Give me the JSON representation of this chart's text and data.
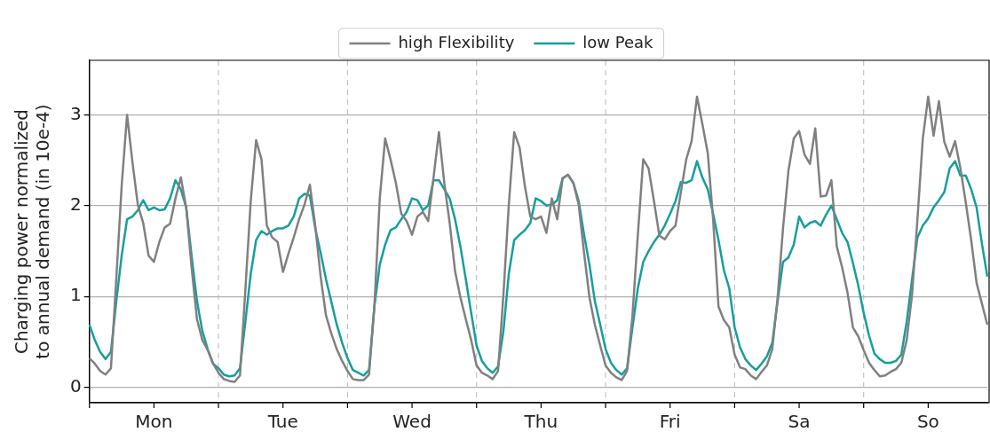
{
  "chart_data": {
    "type": "line",
    "ylabel": "Charging power normalized\nto annual demand (in 10e-4)",
    "categories": [
      null,
      null,
      null,
      null,
      null,
      null,
      null,
      null,
      null,
      null,
      null,
      null,
      "Mon",
      null,
      null,
      null,
      null,
      null,
      null,
      null,
      null,
      null,
      null,
      null,
      null,
      null,
      null,
      null,
      null,
      null,
      null,
      null,
      null,
      null,
      null,
      null,
      "Tue",
      null,
      null,
      null,
      null,
      null,
      null,
      null,
      null,
      null,
      null,
      null,
      null,
      null,
      null,
      null,
      null,
      null,
      null,
      null,
      null,
      null,
      null,
      null,
      "Wed",
      null,
      null,
      null,
      null,
      null,
      null,
      null,
      null,
      null,
      null,
      null,
      null,
      null,
      null,
      null,
      null,
      null,
      null,
      null,
      null,
      null,
      null,
      null,
      "Thu",
      null,
      null,
      null,
      null,
      null,
      null,
      null,
      null,
      null,
      null,
      null,
      null,
      null,
      null,
      null,
      null,
      null,
      null,
      null,
      null,
      null,
      null,
      null,
      "Fri",
      null,
      null,
      null,
      null,
      null,
      null,
      null,
      null,
      null,
      null,
      null,
      null,
      null,
      null,
      null,
      null,
      null,
      null,
      null,
      null,
      null,
      null,
      null,
      "Sa",
      null,
      null,
      null,
      null,
      null,
      null,
      null,
      null,
      null,
      null,
      null,
      null,
      null,
      null,
      null,
      null,
      null,
      null,
      null,
      null,
      null,
      null,
      null,
      "So",
      null,
      null,
      null,
      null,
      null,
      null,
      null,
      null,
      null,
      null,
      null
    ],
    "series": [
      {
        "name": "high Flexibility",
        "color": "#808080",
        "values": [
          0.32,
          0.26,
          0.18,
          0.14,
          0.21,
          1.2,
          2.22,
          3.0,
          2.48,
          2.01,
          1.81,
          1.45,
          1.38,
          1.6,
          1.76,
          1.8,
          2.08,
          2.31,
          1.98,
          1.32,
          0.75,
          0.52,
          0.41,
          0.26,
          0.16,
          0.09,
          0.07,
          0.06,
          0.13,
          1.07,
          2.05,
          2.72,
          2.51,
          1.78,
          1.65,
          1.6,
          1.27,
          1.47,
          1.65,
          1.85,
          2.01,
          2.23,
          1.78,
          1.22,
          0.79,
          0.59,
          0.42,
          0.29,
          0.18,
          0.09,
          0.08,
          0.08,
          0.14,
          0.89,
          2.08,
          2.74,
          2.51,
          2.25,
          1.91,
          1.83,
          1.68,
          1.88,
          1.93,
          1.83,
          2.31,
          2.81,
          2.25,
          1.81,
          1.28,
          0.99,
          0.75,
          0.52,
          0.24,
          0.16,
          0.13,
          0.09,
          0.18,
          1.02,
          2.01,
          2.81,
          2.64,
          2.21,
          1.88,
          1.85,
          1.88,
          1.7,
          2.08,
          1.85,
          2.3,
          2.34,
          2.25,
          2.01,
          1.48,
          0.99,
          0.69,
          0.46,
          0.24,
          0.16,
          0.11,
          0.08,
          0.18,
          0.79,
          1.68,
          2.51,
          2.41,
          2.05,
          1.67,
          1.63,
          1.72,
          1.78,
          2.15,
          2.51,
          2.71,
          3.2,
          2.9,
          2.58,
          1.85,
          0.89,
          0.74,
          0.66,
          0.36,
          0.22,
          0.2,
          0.13,
          0.09,
          0.17,
          0.24,
          0.42,
          0.99,
          1.75,
          2.38,
          2.74,
          2.82,
          2.56,
          2.46,
          2.85,
          2.1,
          2.11,
          2.28,
          1.55,
          1.32,
          1.04,
          0.66,
          0.56,
          0.41,
          0.27,
          0.19,
          0.12,
          0.13,
          0.17,
          0.2,
          0.27,
          0.52,
          1.02,
          1.85,
          2.74,
          3.2,
          2.77,
          3.15,
          2.7,
          2.54,
          2.71,
          2.41,
          2.03,
          1.62,
          1.15,
          0.92,
          0.69
        ]
      },
      {
        "name": "low Peak",
        "color": "#169e9e",
        "values": [
          0.69,
          0.52,
          0.39,
          0.31,
          0.39,
          0.95,
          1.45,
          1.85,
          1.88,
          1.95,
          2.06,
          1.95,
          1.98,
          1.95,
          1.96,
          2.08,
          2.28,
          2.18,
          1.98,
          1.45,
          0.95,
          0.62,
          0.42,
          0.26,
          0.21,
          0.14,
          0.12,
          0.13,
          0.21,
          0.72,
          1.25,
          1.62,
          1.72,
          1.68,
          1.72,
          1.75,
          1.75,
          1.78,
          1.88,
          2.08,
          2.13,
          2.11,
          1.75,
          1.48,
          1.19,
          0.94,
          0.69,
          0.49,
          0.32,
          0.19,
          0.16,
          0.13,
          0.19,
          0.89,
          1.35,
          1.57,
          1.73,
          1.76,
          1.85,
          1.93,
          2.08,
          2.06,
          1.95,
          2.0,
          2.28,
          2.28,
          2.18,
          2.08,
          1.85,
          1.55,
          1.19,
          0.82,
          0.46,
          0.29,
          0.21,
          0.16,
          0.23,
          0.62,
          1.25,
          1.62,
          1.68,
          1.73,
          1.81,
          2.08,
          2.05,
          2.0,
          2.01,
          2.06,
          2.3,
          2.34,
          2.25,
          2.05,
          1.68,
          1.35,
          0.95,
          0.69,
          0.42,
          0.27,
          0.19,
          0.14,
          0.21,
          0.66,
          1.09,
          1.38,
          1.5,
          1.6,
          1.68,
          1.78,
          1.91,
          2.05,
          2.26,
          2.25,
          2.28,
          2.49,
          2.31,
          2.18,
          1.91,
          1.62,
          1.29,
          1.09,
          0.66,
          0.44,
          0.31,
          0.24,
          0.19,
          0.26,
          0.34,
          0.49,
          0.95,
          1.38,
          1.43,
          1.57,
          1.88,
          1.76,
          1.81,
          1.83,
          1.78,
          1.9,
          2.0,
          1.85,
          1.7,
          1.6,
          1.37,
          1.12,
          0.82,
          0.57,
          0.37,
          0.31,
          0.27,
          0.27,
          0.29,
          0.36,
          0.72,
          1.19,
          1.65,
          1.78,
          1.86,
          1.98,
          2.06,
          2.15,
          2.41,
          2.49,
          2.33,
          2.33,
          2.18,
          1.98,
          1.58,
          1.22
        ]
      }
    ],
    "ylim": [
      -0.17,
      3.6
    ],
    "yticks": [
      0,
      1,
      2,
      3
    ],
    "grid": true,
    "legend": "top",
    "marker": "none",
    "line_style": "solid"
  }
}
